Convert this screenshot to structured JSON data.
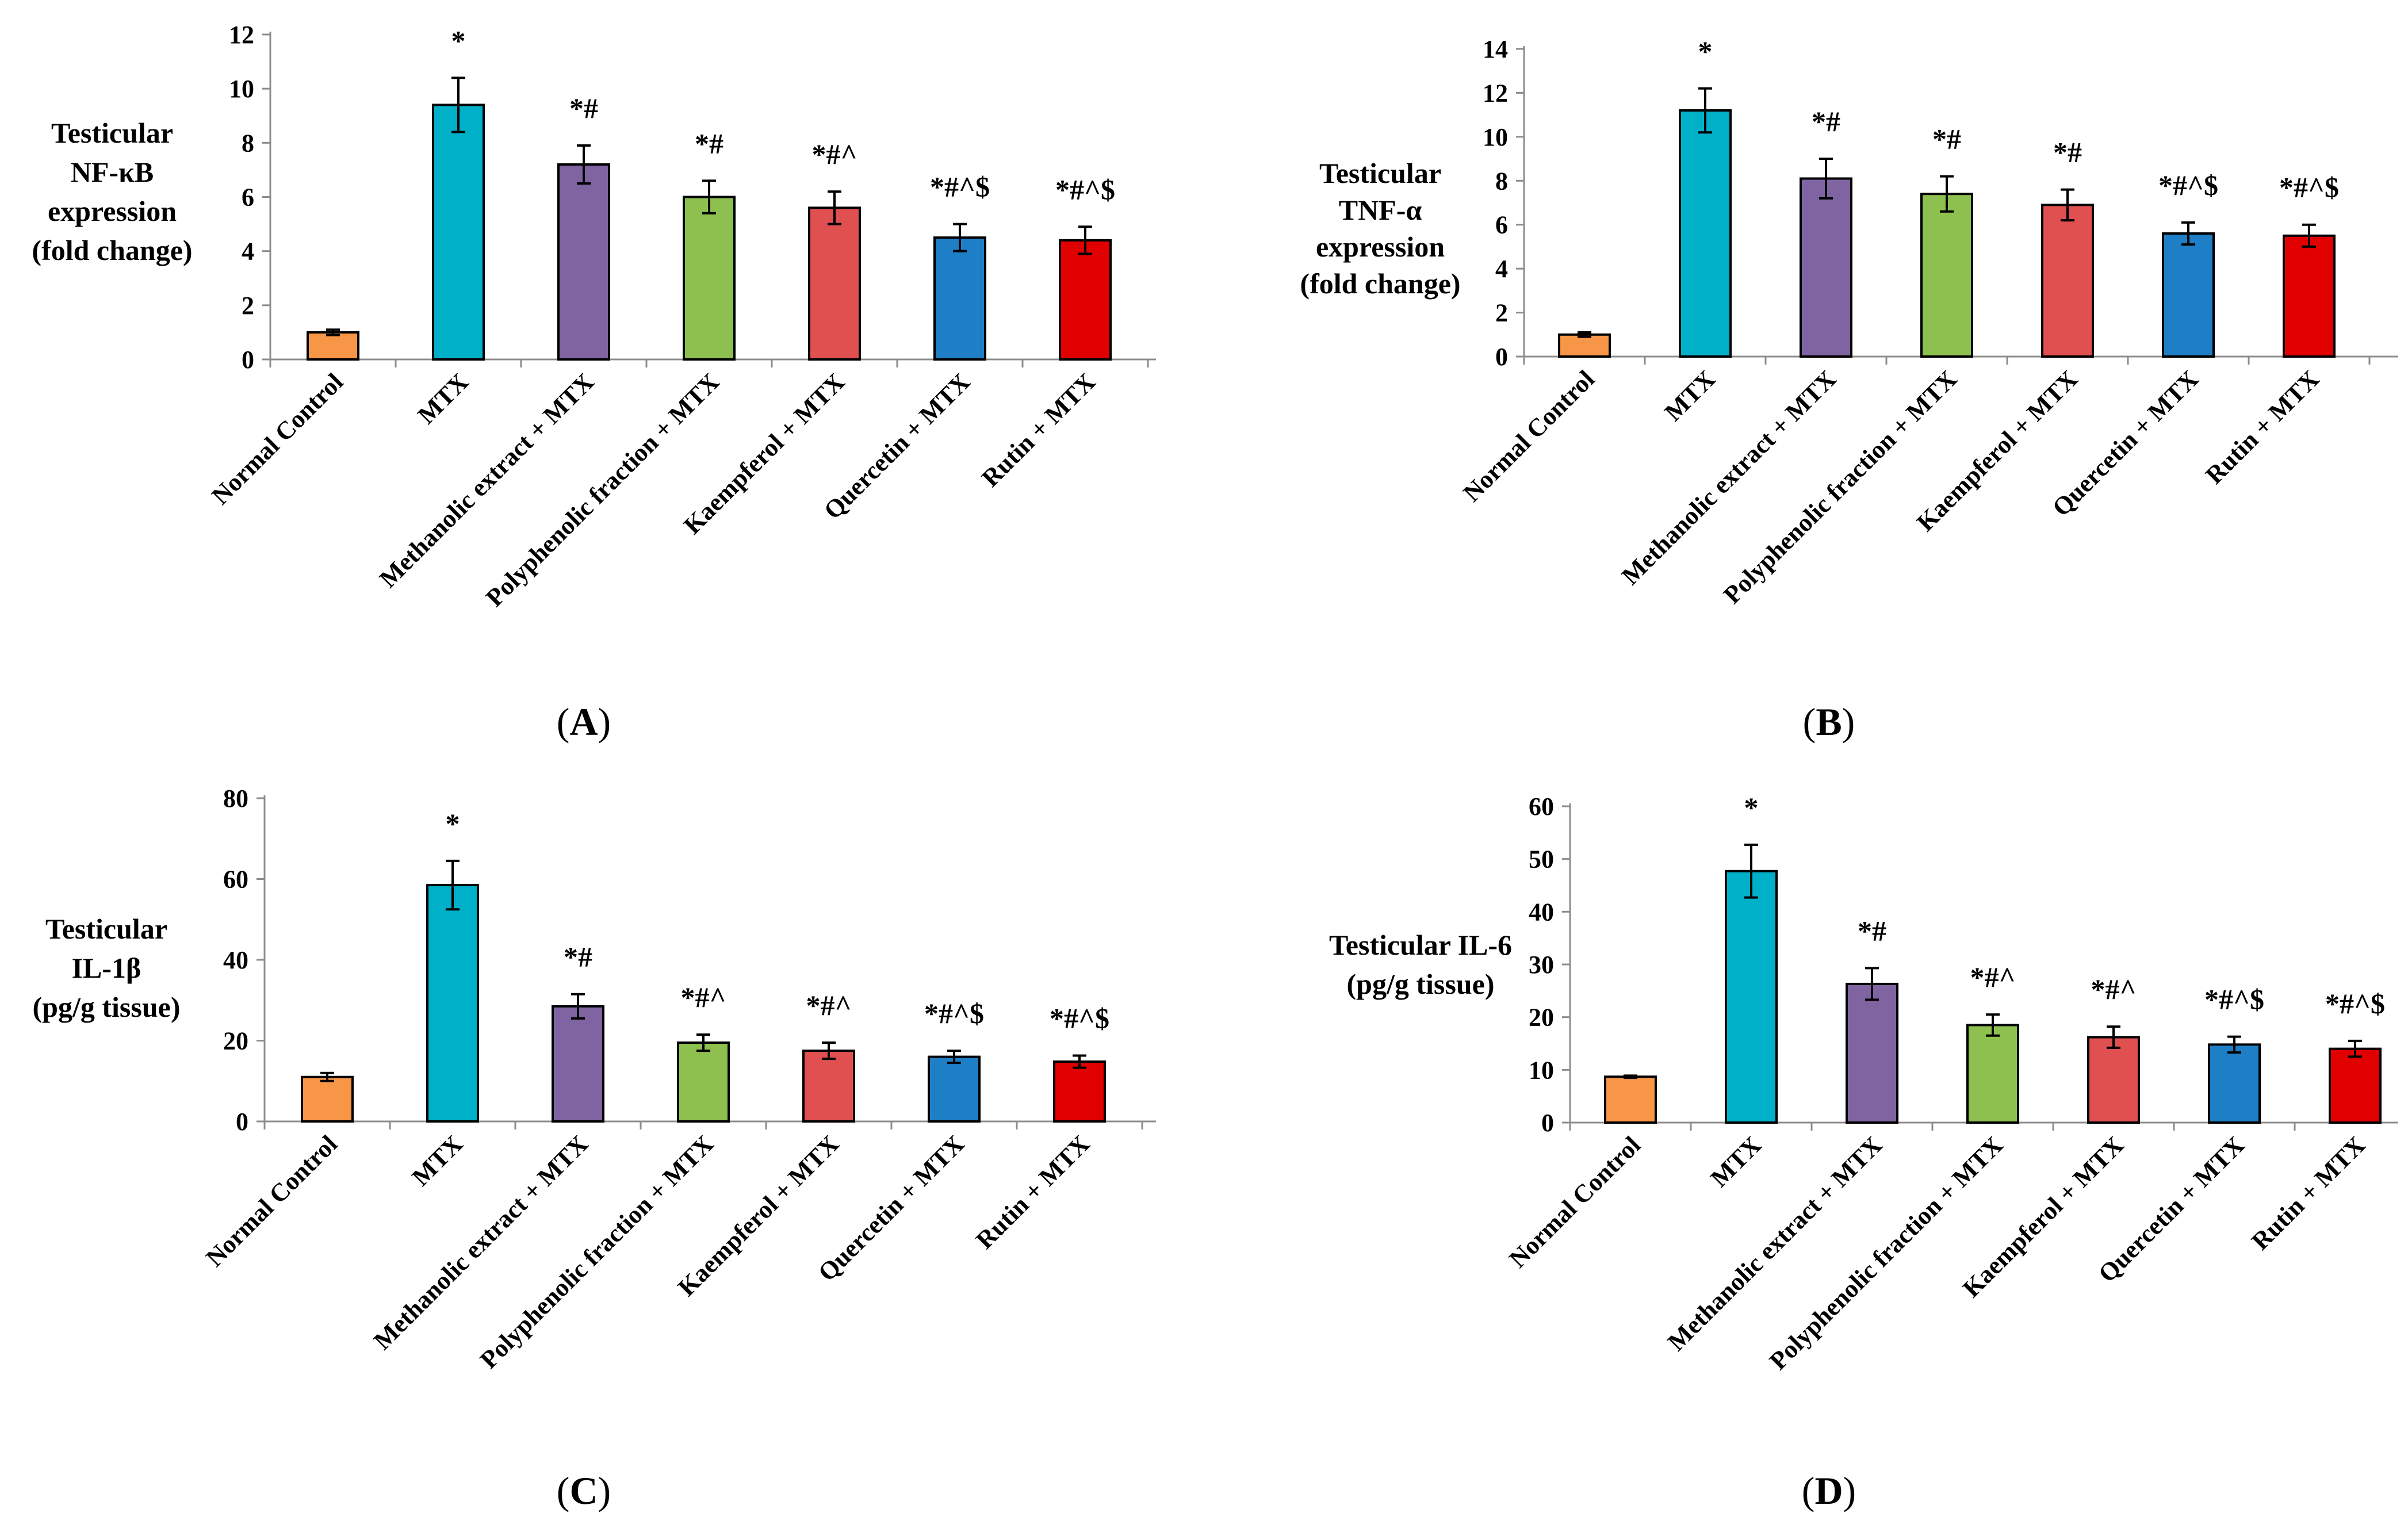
{
  "colors": {
    "Normal Control": "#f79646",
    "MTX": "#00b0c8",
    "Methanolic extract + MTX": "#8064a2",
    "Polyphenolic fraction + MTX": "#8dc04f",
    "Kaempferol + MTX": "#e05050",
    "Quercetin + MTX": "#1f7fc6",
    "Rutin + MTX": "#e00000"
  },
  "chart_data": [
    {
      "panel": "A",
      "type": "bar",
      "ylabel_lines": [
        "Testicular",
        "NF-κB",
        "expression",
        "(fold change)"
      ],
      "xlabel": "",
      "categories": [
        "Normal Control",
        "MTX",
        "Methanolic extract + MTX",
        "Polyphenolic fraction + MTX",
        "Kaempferol + MTX",
        "Quercetin + MTX",
        "Rutin + MTX"
      ],
      "values": [
        1.0,
        9.4,
        7.2,
        6.0,
        5.6,
        4.5,
        4.4
      ],
      "errors": [
        0.1,
        1.0,
        0.7,
        0.6,
        0.6,
        0.5,
        0.5
      ],
      "significance": [
        "",
        "*",
        "*#",
        "*#",
        "*#^",
        "*#^$",
        "*#^$"
      ],
      "ylim": [
        0,
        12
      ],
      "yticks": [
        0,
        2,
        4,
        6,
        8,
        10,
        12
      ],
      "grid": false,
      "legend": "none"
    },
    {
      "panel": "B",
      "type": "bar",
      "ylabel_lines": [
        "Testicular",
        "TNF-α",
        "expression",
        "(fold change)"
      ],
      "xlabel": "",
      "categories": [
        "Normal Control",
        "MTX",
        "Methanolic extract + MTX",
        "Polyphenolic fraction + MTX",
        "Kaempferol + MTX",
        "Quercetin + MTX",
        "Rutin + MTX"
      ],
      "values": [
        1.0,
        11.2,
        8.1,
        7.4,
        6.9,
        5.6,
        5.5
      ],
      "errors": [
        0.1,
        1.0,
        0.9,
        0.8,
        0.7,
        0.5,
        0.5
      ],
      "significance": [
        "",
        "*",
        "*#",
        "*#",
        "*#",
        "*#^$",
        "*#^$"
      ],
      "ylim": [
        0,
        14
      ],
      "yticks": [
        0,
        2,
        4,
        6,
        8,
        10,
        12,
        14
      ],
      "grid": false,
      "legend": "none"
    },
    {
      "panel": "C",
      "type": "bar",
      "ylabel_lines": [
        "Testicular",
        "IL-1β",
        "(pg/g tissue)"
      ],
      "xlabel": "",
      "categories": [
        "Normal Control",
        "MTX",
        "Methanolic extract + MTX",
        "Polyphenolic fraction + MTX",
        "Kaempferol + MTX",
        "Quercetin + MTX",
        "Rutin + MTX"
      ],
      "values": [
        11,
        58.5,
        28.5,
        19.5,
        17.5,
        16,
        14.8
      ],
      "errors": [
        1,
        6,
        3,
        2,
        2,
        1.5,
        1.5
      ],
      "significance": [
        "",
        "*",
        "*#",
        "*#^",
        "*#^",
        "*#^$",
        "*#^$"
      ],
      "ylim": [
        0,
        80
      ],
      "yticks": [
        0,
        20,
        40,
        60,
        80
      ],
      "grid": false,
      "legend": "none"
    },
    {
      "panel": "D",
      "type": "bar",
      "ylabel_lines": [
        "Testicular IL-6",
        "(pg/g tissue)"
      ],
      "xlabel": "",
      "categories": [
        "Normal Control",
        "MTX",
        "Methanolic extract + MTX",
        "Polyphenolic fraction + MTX",
        "Kaempferol + MTX",
        "Quercetin + MTX",
        "Rutin + MTX"
      ],
      "values": [
        8.7,
        47.7,
        26.3,
        18.5,
        16.2,
        14.8,
        14.0
      ],
      "errors": [
        0.2,
        5,
        3,
        2,
        2,
        1.5,
        1.5
      ],
      "significance": [
        "",
        "*",
        "*#",
        "*#^",
        "*#^",
        "*#^$",
        "*#^$"
      ],
      "ylim": [
        0,
        60
      ],
      "yticks": [
        0,
        10,
        20,
        30,
        40,
        50,
        60
      ],
      "grid": false,
      "legend": "none"
    }
  ]
}
